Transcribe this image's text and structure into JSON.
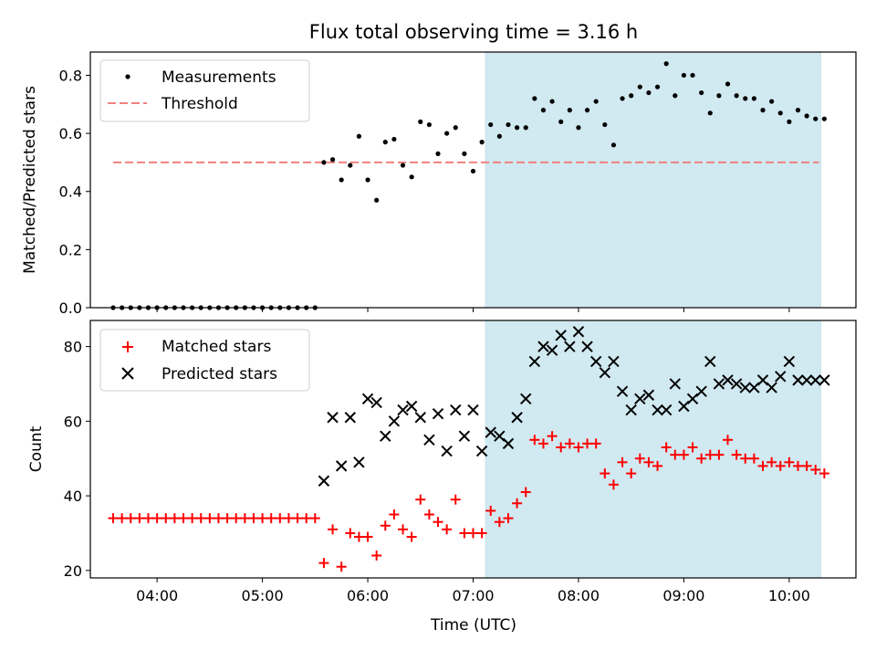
{
  "title": "Flux total observing time = 3.16 h",
  "colors": {
    "measurement": "#000000",
    "threshold": "#f08080",
    "matched": "#ff0000",
    "predicted": "#000000",
    "shade": "#add8e6"
  },
  "chart_data": [
    {
      "type": "scatter",
      "ylabel": "Matched/Predicted stars",
      "ylim": [
        0,
        0.88
      ],
      "xlim": [
        "03:22",
        "10:38"
      ],
      "yticks": [
        0.0,
        0.2,
        0.4,
        0.6,
        0.8
      ],
      "ytick_labels": [
        "0.0",
        "0.2",
        "0.4",
        "0.6",
        "0.8"
      ],
      "shaded_region": [
        "07:07",
        "10:18"
      ],
      "legend_position": "upper-left",
      "legend": [
        "Measurements",
        "Threshold"
      ],
      "threshold": {
        "value": 0.5,
        "x_range": [
          "03:35",
          "10:17"
        ]
      },
      "series": [
        {
          "name": "Measurements",
          "marker": "dot",
          "x": [
            "03:35",
            "03:40",
            "03:45",
            "03:50",
            "03:55",
            "04:00",
            "04:05",
            "04:10",
            "04:15",
            "04:20",
            "04:25",
            "04:30",
            "04:35",
            "04:40",
            "04:45",
            "04:50",
            "04:55",
            "05:00",
            "05:05",
            "05:10",
            "05:15",
            "05:20",
            "05:25",
            "05:30",
            "05:35",
            "05:40",
            "05:45",
            "05:50",
            "05:55",
            "06:00",
            "06:05",
            "06:10",
            "06:15",
            "06:20",
            "06:25",
            "06:30",
            "06:35",
            "06:40",
            "06:45",
            "06:50",
            "06:55",
            "07:00",
            "07:05",
            "07:10",
            "07:15",
            "07:20",
            "07:25",
            "07:30",
            "07:35",
            "07:40",
            "07:45",
            "07:50",
            "07:55",
            "08:00",
            "08:05",
            "08:10",
            "08:15",
            "08:20",
            "08:25",
            "08:30",
            "08:35",
            "08:40",
            "08:45",
            "08:50",
            "08:55",
            "09:00",
            "09:05",
            "09:10",
            "09:15",
            "09:20",
            "09:25",
            "09:30",
            "09:35",
            "09:40",
            "09:45",
            "09:50",
            "09:55",
            "10:00",
            "10:05",
            "10:10",
            "10:15",
            "10:20"
          ],
          "y": [
            0,
            0,
            0,
            0,
            0,
            0,
            0,
            0,
            0,
            0,
            0,
            0,
            0,
            0,
            0,
            0,
            0,
            0,
            0,
            0,
            0,
            0,
            0,
            0,
            0.5,
            0.51,
            0.44,
            0.49,
            0.59,
            0.44,
            0.37,
            0.57,
            0.58,
            0.49,
            0.45,
            0.64,
            0.63,
            0.53,
            0.6,
            0.62,
            0.53,
            0.47,
            0.57,
            0.63,
            0.59,
            0.63,
            0.62,
            0.62,
            0.72,
            0.68,
            0.71,
            0.64,
            0.68,
            0.62,
            0.68,
            0.71,
            0.63,
            0.56,
            0.72,
            0.73,
            0.76,
            0.74,
            0.76,
            0.84,
            0.73,
            0.8,
            0.8,
            0.74,
            0.67,
            0.73,
            0.77,
            0.73,
            0.72,
            0.72,
            0.68,
            0.71,
            0.67,
            0.64,
            0.68,
            0.66,
            0.65,
            0.65
          ]
        }
      ]
    },
    {
      "type": "scatter",
      "xlabel": "Time (UTC)",
      "ylabel": "Count",
      "ylim": [
        18,
        87
      ],
      "xlim": [
        "03:22",
        "10:38"
      ],
      "yticks": [
        20,
        40,
        60,
        80
      ],
      "ytick_labels": [
        "20",
        "40",
        "60",
        "80"
      ],
      "xticks": [
        "04:00",
        "05:00",
        "06:00",
        "07:00",
        "08:00",
        "09:00",
        "10:00"
      ],
      "shaded_region": [
        "07:07",
        "10:18"
      ],
      "legend_position": "upper-left",
      "legend": [
        "Matched stars",
        "Predicted stars"
      ],
      "series": [
        {
          "name": "Matched stars",
          "marker": "plus",
          "x": [
            "03:35",
            "03:40",
            "03:45",
            "03:50",
            "03:55",
            "04:00",
            "04:05",
            "04:10",
            "04:15",
            "04:20",
            "04:25",
            "04:30",
            "04:35",
            "04:40",
            "04:45",
            "04:50",
            "04:55",
            "05:00",
            "05:05",
            "05:10",
            "05:15",
            "05:20",
            "05:25",
            "05:30",
            "05:35",
            "05:40",
            "05:45",
            "05:50",
            "05:55",
            "06:00",
            "06:05",
            "06:10",
            "06:15",
            "06:20",
            "06:25",
            "06:30",
            "06:35",
            "06:40",
            "06:45",
            "06:50",
            "06:55",
            "07:00",
            "07:05",
            "07:10",
            "07:15",
            "07:20",
            "07:25",
            "07:30",
            "07:35",
            "07:40",
            "07:45",
            "07:50",
            "07:55",
            "08:00",
            "08:05",
            "08:10",
            "08:15",
            "08:20",
            "08:25",
            "08:30",
            "08:35",
            "08:40",
            "08:45",
            "08:50",
            "08:55",
            "09:00",
            "09:05",
            "09:10",
            "09:15",
            "09:20",
            "09:25",
            "09:30",
            "09:35",
            "09:40",
            "09:45",
            "09:50",
            "09:55",
            "10:00",
            "10:05",
            "10:10",
            "10:15",
            "10:20"
          ],
          "y": [
            34,
            34,
            34,
            34,
            34,
            34,
            34,
            34,
            34,
            34,
            34,
            34,
            34,
            34,
            34,
            34,
            34,
            34,
            34,
            34,
            34,
            34,
            34,
            34,
            22,
            31,
            21,
            30,
            29,
            29,
            24,
            32,
            35,
            31,
            29,
            39,
            35,
            33,
            31,
            39,
            30,
            30,
            30,
            36,
            33,
            34,
            38,
            41,
            55,
            54,
            56,
            53,
            54,
            53,
            54,
            54,
            46,
            43,
            49,
            46,
            50,
            49,
            48,
            53,
            51,
            51,
            53,
            50,
            51,
            51,
            55,
            51,
            50,
            50,
            48,
            49,
            48,
            49,
            48,
            48,
            47,
            46
          ]
        },
        {
          "name": "Predicted stars",
          "marker": "x",
          "x": [
            "05:35",
            "05:40",
            "05:45",
            "05:50",
            "05:55",
            "06:00",
            "06:05",
            "06:10",
            "06:15",
            "06:20",
            "06:25",
            "06:30",
            "06:35",
            "06:40",
            "06:45",
            "06:50",
            "06:55",
            "07:00",
            "07:05",
            "07:10",
            "07:15",
            "07:20",
            "07:25",
            "07:30",
            "07:35",
            "07:40",
            "07:45",
            "07:50",
            "07:55",
            "08:00",
            "08:05",
            "08:10",
            "08:15",
            "08:20",
            "08:25",
            "08:30",
            "08:35",
            "08:40",
            "08:45",
            "08:50",
            "08:55",
            "09:00",
            "09:05",
            "09:10",
            "09:15",
            "09:20",
            "09:25",
            "09:30",
            "09:35",
            "09:40",
            "09:45",
            "09:50",
            "09:55",
            "10:00",
            "10:05",
            "10:10",
            "10:15",
            "10:20"
          ],
          "y": [
            44,
            61,
            48,
            61,
            49,
            66,
            65,
            56,
            60,
            63,
            64,
            61,
            55,
            62,
            52,
            63,
            56,
            63,
            52,
            57,
            56,
            54,
            61,
            66,
            76,
            80,
            79,
            83,
            80,
            84,
            80,
            76,
            73,
            76,
            68,
            63,
            66,
            67,
            63,
            63,
            70,
            64,
            66,
            68,
            76,
            70,
            71,
            70,
            69,
            69,
            71,
            69,
            72,
            76,
            71,
            71,
            71,
            71
          ]
        }
      ]
    }
  ]
}
